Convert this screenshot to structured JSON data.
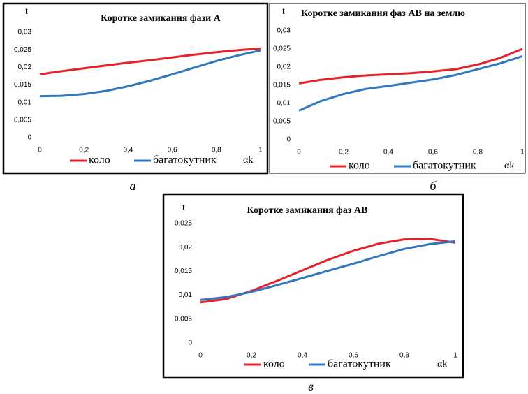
{
  "chart_data": [
    {
      "type": "line",
      "title": "Коротке замикання фази А",
      "y_label": "t",
      "x_label": "αk",
      "caption": "а",
      "x": [
        0,
        0.1,
        0.2,
        0.3,
        0.4,
        0.5,
        0.6,
        0.7,
        0.8,
        0.9,
        1
      ],
      "series": [
        {
          "name": "коло",
          "color": "#e8202a",
          "values": [
            0.018,
            0.0189,
            0.0197,
            0.0205,
            0.0213,
            0.022,
            0.0228,
            0.0236,
            0.0243,
            0.0249,
            0.0254
          ]
        },
        {
          "name": "багатокутник",
          "color": "#2f78c0",
          "values": [
            0.0118,
            0.0119,
            0.0124,
            0.0133,
            0.0146,
            0.0162,
            0.018,
            0.0199,
            0.0218,
            0.0234,
            0.0248
          ]
        }
      ],
      "xlim": [
        0,
        1
      ],
      "xticks": [
        0,
        {
          "value": 0.2,
          "label": "0,2"
        },
        {
          "value": 0.4,
          "label": "0,4"
        },
        {
          "value": 0.6,
          "label": "0,6"
        },
        {
          "value": 0.8,
          "label": "0,8"
        },
        1
      ],
      "ylim": [
        0,
        0.03
      ],
      "yticks": [
        0,
        {
          "value": 0.005,
          "label": "0,005"
        },
        {
          "value": 0.01,
          "label": "0,01"
        },
        {
          "value": 0.015,
          "label": "0,015"
        },
        {
          "value": 0.02,
          "label": "0,02"
        },
        {
          "value": 0.025,
          "label": "0,025"
        },
        {
          "value": 0.03,
          "label": "0,03"
        }
      ]
    },
    {
      "type": "line",
      "title": "Коротке замикання фаз АВ на землю",
      "y_label": "t",
      "x_label": "αk",
      "caption": "б",
      "x": [
        0,
        0.1,
        0.2,
        0.3,
        0.4,
        0.5,
        0.6,
        0.7,
        0.8,
        0.9,
        1
      ],
      "series": [
        {
          "name": "коло",
          "color": "#e8202a",
          "values": [
            0.0155,
            0.0165,
            0.0172,
            0.0177,
            0.018,
            0.0183,
            0.0188,
            0.0194,
            0.0207,
            0.0225,
            0.025
          ]
        },
        {
          "name": "багатокутник",
          "color": "#2f78c0",
          "values": [
            0.008,
            0.0107,
            0.0126,
            0.014,
            0.0148,
            0.0157,
            0.0166,
            0.0178,
            0.0194,
            0.021,
            0.023
          ]
        }
      ],
      "xlim": [
        0,
        1
      ],
      "xticks": [
        0,
        {
          "value": 0.2,
          "label": "0,2"
        },
        {
          "value": 0.4,
          "label": "0,4"
        },
        {
          "value": 0.6,
          "label": "0,6"
        },
        {
          "value": 0.8,
          "label": "0,8"
        },
        1
      ],
      "ylim": [
        0,
        0.03
      ],
      "yticks": [
        0,
        {
          "value": 0.005,
          "label": "0,005"
        },
        {
          "value": 0.01,
          "label": "0,01"
        },
        {
          "value": 0.015,
          "label": "0,015"
        },
        {
          "value": 0.02,
          "label": "0,02"
        },
        {
          "value": 0.025,
          "label": "0,025"
        },
        {
          "value": 0.03,
          "label": "0,03"
        }
      ]
    },
    {
      "type": "line",
      "title": "Коротке замикання фаз АВ",
      "y_label": "t",
      "x_label": "αk",
      "caption": "в",
      "x": [
        0,
        0.1,
        0.2,
        0.3,
        0.4,
        0.5,
        0.6,
        0.7,
        0.8,
        0.9,
        1
      ],
      "series": [
        {
          "name": "коло",
          "color": "#e8202a",
          "values": [
            0.0085,
            0.0092,
            0.0109,
            0.013,
            0.0152,
            0.0174,
            0.0193,
            0.0208,
            0.0217,
            0.0218,
            0.021
          ]
        },
        {
          "name": "багатокутник",
          "color": "#2f78c0",
          "values": [
            0.009,
            0.0096,
            0.0107,
            0.0121,
            0.0136,
            0.0151,
            0.0166,
            0.0182,
            0.0197,
            0.0207,
            0.0213
          ]
        }
      ],
      "xlim": [
        0,
        1
      ],
      "xticks": [
        0,
        {
          "value": 0.2,
          "label": "0,2"
        },
        {
          "value": 0.4,
          "label": "0,4"
        },
        {
          "value": 0.6,
          "label": "0,6"
        },
        {
          "value": 0.8,
          "label": "0,8"
        },
        1
      ],
      "ylim": [
        0,
        0.025
      ],
      "yticks": [
        0,
        {
          "value": 0.005,
          "label": "0,005"
        },
        {
          "value": 0.01,
          "label": "0,01"
        },
        {
          "value": 0.015,
          "label": "0,015"
        },
        {
          "value": 0.02,
          "label": "0,02"
        },
        {
          "value": 0.025,
          "label": "0,025"
        }
      ]
    }
  ]
}
